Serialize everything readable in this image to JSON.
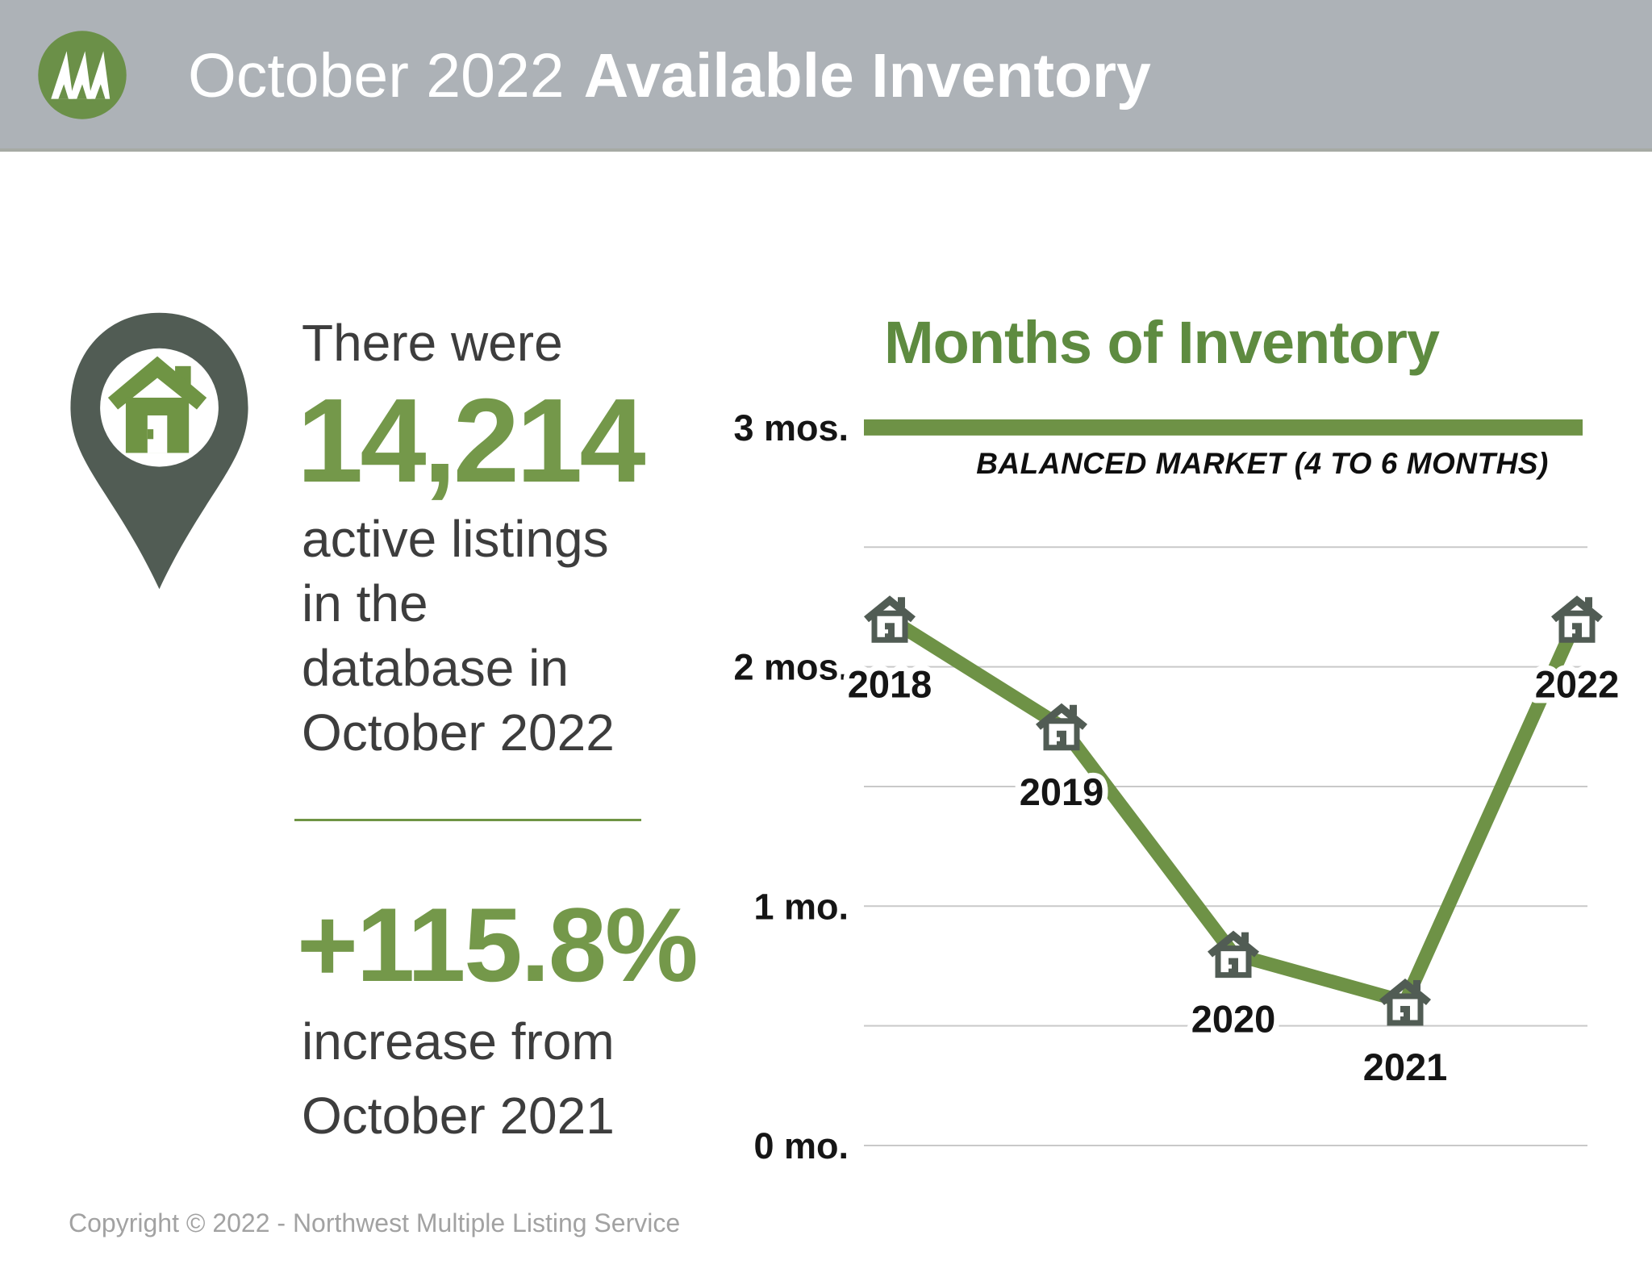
{
  "header": {
    "month_year": "October 2022",
    "title_bold": "Available Inventory"
  },
  "stats": {
    "intro": "There were",
    "count": "14,214",
    "count_caption_lines": [
      "active listings",
      "in the",
      "database in",
      "October 2022"
    ],
    "change": "+115.8%",
    "change_caption_lines": [
      "increase from",
      "October 2021"
    ]
  },
  "footer": {
    "copyright": "Copyright © 2022 - Northwest Multiple Listing Service"
  },
  "chart_data": {
    "type": "line",
    "title": "Months of Inventory",
    "x": [
      2018,
      2019,
      2020,
      2021,
      2022
    ],
    "values": [
      2.2,
      1.75,
      0.8,
      0.6,
      2.2
    ],
    "xlabel": "",
    "ylabel": "",
    "ytick_values": [
      3,
      2,
      1,
      0
    ],
    "ytick_labels": [
      "3 mos.",
      "2 mos.",
      "1 mo.",
      "0 mo."
    ],
    "ylim": [
      0,
      3.2
    ],
    "gridlines": [
      2.5,
      2.0,
      1.5,
      1.0,
      0.5,
      0.0
    ],
    "grid": true,
    "legend": "none",
    "marker": "house-icon",
    "reference_line": {
      "value": 3,
      "label": "BALANCED MARKET (4 TO 6 MONTHS)"
    },
    "line_color": "#6e9246"
  },
  "icons": {
    "logo": "evergreen-trees-icon",
    "stat_pin": "map-pin-house-icon",
    "data_marker": "house-icon"
  },
  "colors": {
    "header_bg": "#adb2b7",
    "header_text": "#ffffff",
    "logo_green": "#6b9048",
    "accent_green": "#74984a",
    "title_green": "#5e8b40",
    "line_green": "#6e9246",
    "slate_gray": "#515c54",
    "body_text": "#3d3d3d",
    "gridline": "#c9c9c9",
    "copyright_gray": "#a2a2a2"
  }
}
